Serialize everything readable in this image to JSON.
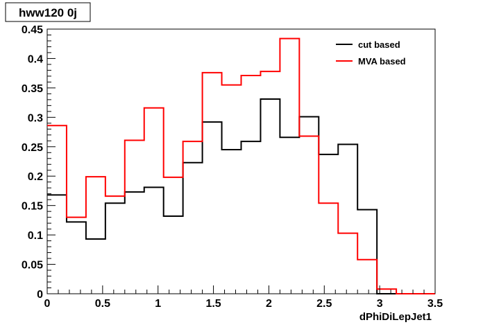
{
  "chart_data": {
    "type": "line",
    "title": "hww120 0j",
    "xlabel": "dPhiDiLepJet1",
    "ylabel": "",
    "xlim": [
      0,
      3.5
    ],
    "ylim": [
      0,
      0.45
    ],
    "x_ticks": [
      "0",
      "0.5",
      "1",
      "1.5",
      "2",
      "2.5",
      "3",
      "3.5"
    ],
    "y_ticks": [
      "0",
      "0.05",
      "0.1",
      "0.15",
      "0.2",
      "0.25",
      "0.3",
      "0.35",
      "0.4",
      "0.45"
    ],
    "bin_edges": [
      0,
      0.175,
      0.35,
      0.525,
      0.7,
      0.875,
      1.05,
      1.225,
      1.4,
      1.575,
      1.75,
      1.925,
      2.1,
      2.275,
      2.45,
      2.625,
      2.8,
      2.975,
      3.15,
      3.325,
      3.5
    ],
    "legend_position": "top-right",
    "series": [
      {
        "name": "cut based",
        "color": "#000000",
        "values": [
          0.168,
          0.122,
          0.093,
          0.154,
          0.173,
          0.181,
          0.132,
          0.223,
          0.292,
          0.245,
          0.259,
          0.331,
          0.266,
          0.301,
          0.237,
          0.254,
          0.143,
          0.0,
          0.0,
          0.0
        ]
      },
      {
        "name": "MVA based",
        "color": "#ff0000",
        "values": [
          0.286,
          0.13,
          0.199,
          0.166,
          0.261,
          0.316,
          0.198,
          0.259,
          0.376,
          0.355,
          0.371,
          0.378,
          0.434,
          0.268,
          0.154,
          0.103,
          0.058,
          0.008,
          0.0,
          0.0
        ]
      }
    ]
  }
}
